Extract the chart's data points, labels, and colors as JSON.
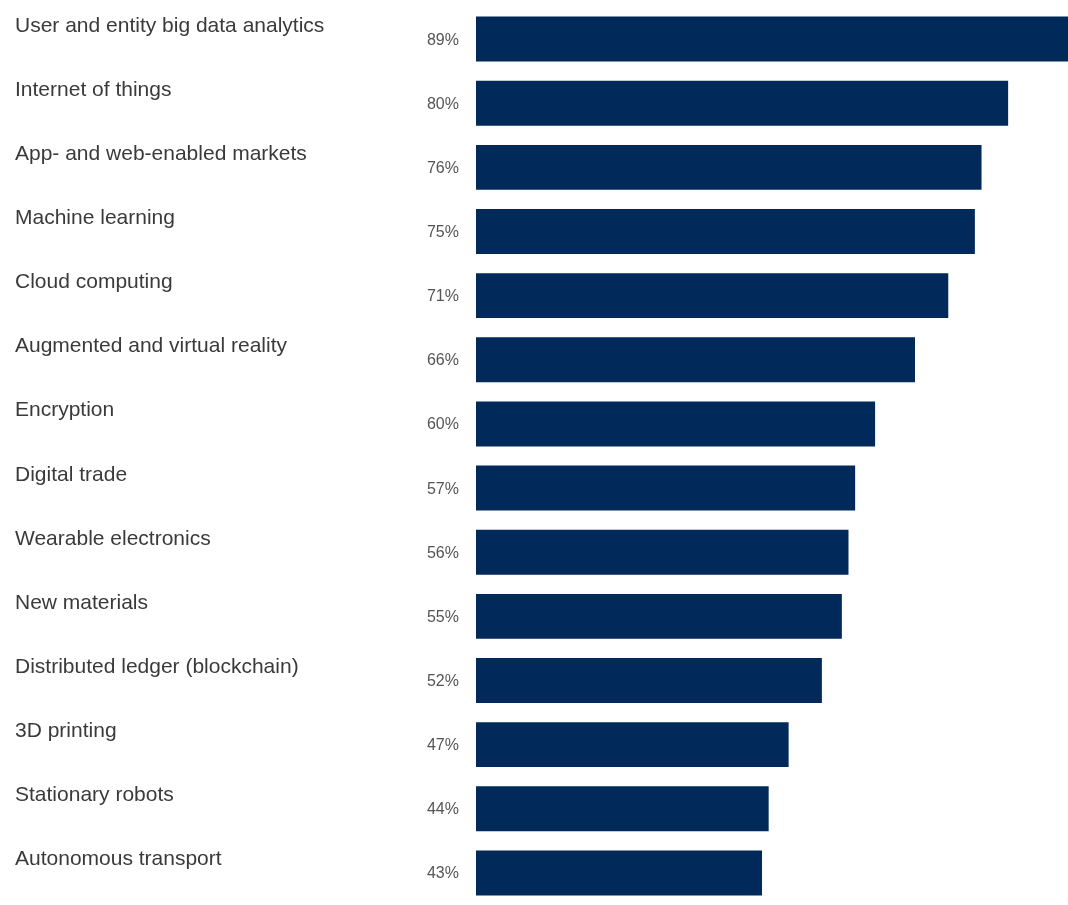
{
  "chart_data": {
    "type": "bar",
    "orientation": "horizontal",
    "categories": [
      "User and entity big data analytics",
      "Internet of things",
      "App- and web-enabled markets",
      "Machine learning",
      "Cloud computing",
      "Augmented and virtual reality",
      "Encryption",
      "Digital trade",
      "Wearable electronics",
      "New materials",
      "Distributed ledger (blockchain)",
      "3D printing",
      "Stationary robots",
      "Autonomous transport"
    ],
    "values": [
      89,
      80,
      76,
      75,
      71,
      66,
      60,
      57,
      56,
      55,
      52,
      47,
      44,
      43
    ],
    "value_labels": [
      "89%",
      "80%",
      "76%",
      "75%",
      "71%",
      "66%",
      "60%",
      "57%",
      "56%",
      "55%",
      "52%",
      "47%",
      "44%",
      "43%"
    ],
    "color": "#012a5a"
  }
}
